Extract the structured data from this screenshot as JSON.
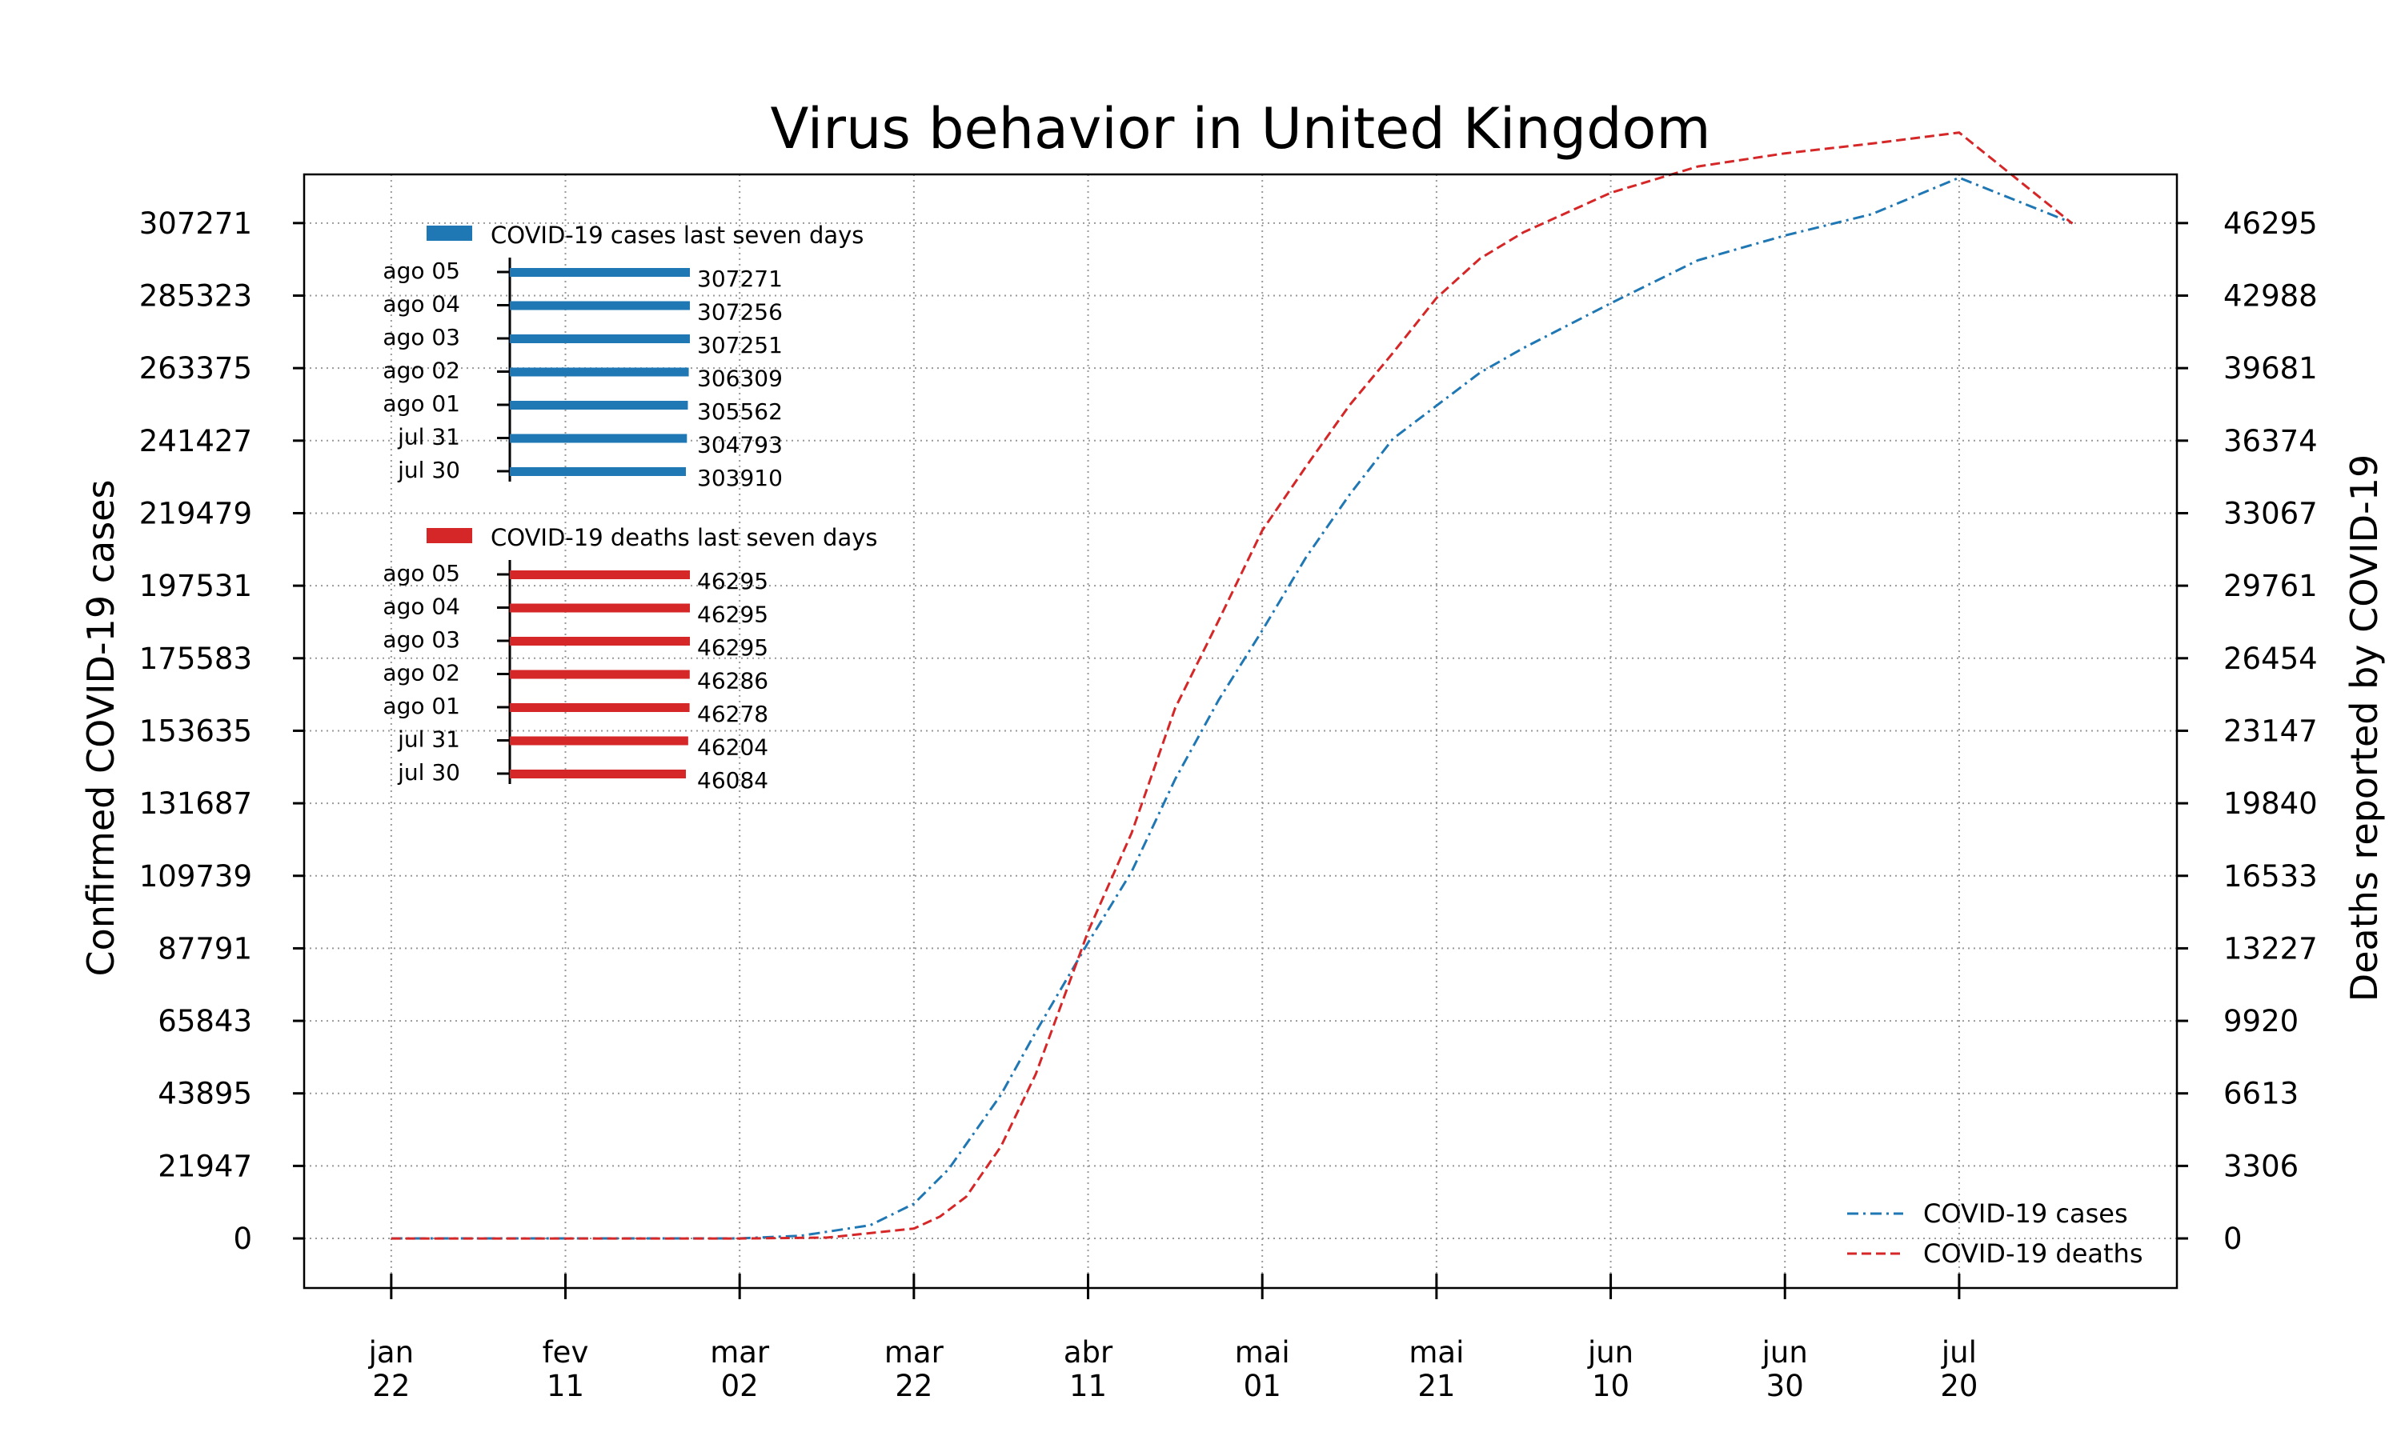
{
  "chart_data": {
    "type": "line",
    "title": "Virus behavior in United Kingdom",
    "ylabel_left": "Confirmed COVID-19 cases",
    "ylabel_right": "Deaths reported by COVID-19",
    "x_tick_labels": [
      [
        "jan",
        "22"
      ],
      [
        "fev",
        "11"
      ],
      [
        "mar",
        "02"
      ],
      [
        "mar",
        "22"
      ],
      [
        "abr",
        "11"
      ],
      [
        "mai",
        "01"
      ],
      [
        "mai",
        "21"
      ],
      [
        "jun",
        "10"
      ],
      [
        "jun",
        "30"
      ],
      [
        "jul",
        "20"
      ]
    ],
    "x_tick_days": [
      0,
      20,
      40,
      60,
      80,
      100,
      120,
      140,
      160,
      180
    ],
    "xlim_days": [
      -10,
      205
    ],
    "y_left_ticks": [
      0,
      21947,
      43895,
      65843,
      87791,
      109739,
      131687,
      153635,
      175583,
      197531,
      219479,
      241427,
      263375,
      285323,
      307271
    ],
    "y_right_ticks": [
      0,
      3306,
      6613,
      9920,
      13227,
      16533,
      19840,
      23147,
      26454,
      29761,
      33067,
      36374,
      39681,
      42988,
      46295
    ],
    "ylim_left": [
      -15000,
      322000
    ],
    "ylim_right": [
      -2260,
      48540
    ],
    "grid": true,
    "legend_position": "bottom-right",
    "colors": {
      "cases": "#1f77b4",
      "deaths": "#d62728"
    },
    "series": [
      {
        "name": "COVID-19 cases",
        "axis": "left",
        "style": "dashdot",
        "x": [
          0,
          20,
          40,
          47,
          55,
          60,
          64,
          70,
          74,
          80,
          85,
          90,
          95,
          100,
          105,
          110,
          115,
          120,
          125,
          130,
          140,
          150,
          160,
          170,
          180,
          193
        ],
        "y": [
          0,
          0,
          0,
          800,
          4000,
          10500,
          21000,
          43500,
          62500,
          89500,
          111000,
          139000,
          163000,
          184000,
          206000,
          225000,
          242000,
          252000,
          262000,
          269500,
          283000,
          296000,
          303500,
          310000,
          321000,
          307271
        ]
      },
      {
        "name": "COVID-19 deaths",
        "axis": "right",
        "style": "dashed",
        "x": [
          0,
          20,
          40,
          50,
          60,
          63,
          66,
          70,
          74,
          80,
          85,
          90,
          95,
          100,
          105,
          110,
          115,
          120,
          125,
          130,
          140,
          150,
          160,
          170,
          180,
          193
        ],
        "y": [
          0,
          0,
          0,
          40,
          450,
          1000,
          1900,
          4200,
          7500,
          14000,
          18500,
          24200,
          28200,
          32300,
          35200,
          38000,
          40400,
          42900,
          44700,
          45900,
          47700,
          48900,
          49500,
          49950,
          50450,
          46295
        ]
      }
    ],
    "insets": [
      {
        "title": "COVID-19 cases last seven days",
        "color": "#1f77b4",
        "labels": [
          "ago 05",
          "ago 04",
          "ago 03",
          "ago 02",
          "ago 01",
          "jul 31",
          "jul 30"
        ],
        "values": [
          307271,
          307256,
          307251,
          306309,
          305562,
          304793,
          303910
        ]
      },
      {
        "title": "COVID-19 deaths last seven days",
        "color": "#d62728",
        "labels": [
          "ago 05",
          "ago 04",
          "ago 03",
          "ago 02",
          "ago 01",
          "jul 31",
          "jul 30"
        ],
        "values": [
          46295,
          46295,
          46295,
          46286,
          46278,
          46204,
          46084
        ]
      }
    ]
  }
}
